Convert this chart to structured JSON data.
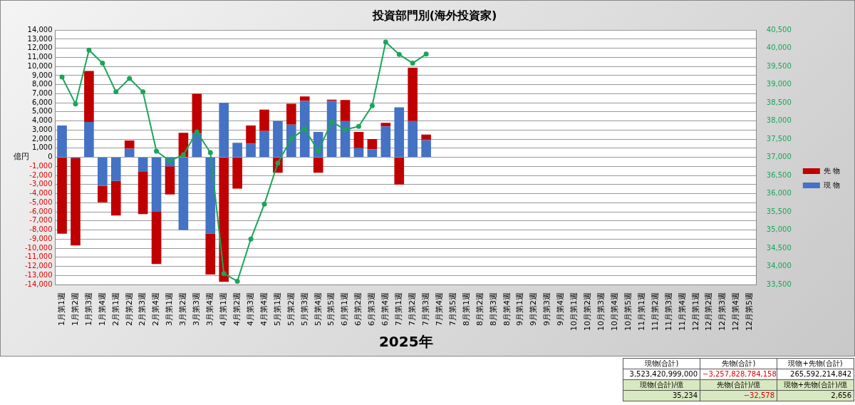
{
  "chart_data": {
    "type": "bar",
    "title": "投資部門別(海外投資家)",
    "xlabel": "2025年",
    "ylabel": "億円",
    "stacked": true,
    "grid": "y",
    "legend": "right",
    "marker": "circle",
    "line_style": "solid",
    "categories": [
      "1月第1週",
      "1月第2週",
      "1月第3週",
      "1月第4週",
      "2月第1週",
      "2月第2週",
      "2月第3週",
      "2月第4週",
      "3月第1週",
      "3月第2週",
      "3月第3週",
      "3月第4週",
      "4月第1週",
      "4月第2週",
      "4月第3週",
      "4月第4週",
      "5月第1週",
      "5月第2週",
      "5月第3週",
      "5月第4週",
      "5月第5週",
      "6月第1週",
      "6月第2週",
      "6月第3週",
      "6月第4週",
      "7月第1週",
      "7月第2週",
      "7月第3週",
      "7月第4週",
      "7月第5週",
      "8月第1週",
      "8月第2週",
      "8月第3週",
      "8月第4週",
      "9月第1週",
      "9月第2週",
      "9月第3週",
      "9月第4週",
      "10月第1週",
      "10月第2週",
      "10月第3週",
      "10月第4週",
      "10月第5週",
      "11月第1週",
      "11月第2週",
      "11月第3週",
      "11月第4週",
      "12月第1週",
      "12月第2週",
      "12月第3週",
      "12月第4週",
      "12月第5週"
    ],
    "series": [
      {
        "name": "現 物",
        "color": "#4472c4",
        "values": [
          3500,
          -100,
          3900,
          -3150,
          -2600,
          950,
          -1600,
          -6000,
          -1000,
          -8000,
          2650,
          -8400,
          6000,
          1600,
          1500,
          2900,
          4000,
          3600,
          6200,
          2800,
          6200,
          4000,
          1000,
          900,
          3400,
          5500,
          4000,
          1900,
          null,
          null,
          null,
          null,
          null,
          null,
          null,
          null,
          null,
          null,
          null,
          null,
          null,
          null,
          null,
          null,
          null,
          null,
          null,
          null,
          null,
          null,
          null,
          null
        ]
      },
      {
        "name": "先 物",
        "color": "#c00000",
        "values": [
          -8400,
          -9600,
          5600,
          -1800,
          -3800,
          900,
          -4650,
          -5750,
          -3100,
          2700,
          4350,
          -4500,
          -13700,
          -3450,
          2000,
          2350,
          -1700,
          2300,
          500,
          -1700,
          150,
          2300,
          1800,
          1100,
          400,
          -3000,
          5850,
          600,
          null,
          null,
          null,
          null,
          null,
          null,
          null,
          null,
          null,
          null,
          null,
          null,
          null,
          null,
          null,
          null,
          null,
          null,
          null,
          null,
          null,
          null,
          null,
          null
        ]
      },
      {
        "type": "line",
        "axis": "y2",
        "color": "#1aa55a",
        "values": [
          39210,
          38470,
          39950,
          39590,
          38800,
          39170,
          38800,
          37170,
          36900,
          37070,
          37700,
          37130,
          33800,
          33590,
          34750,
          35710,
          36840,
          37510,
          37780,
          37170,
          37980,
          37760,
          37850,
          38420,
          40170,
          39830,
          39590,
          39840,
          null,
          null,
          null,
          null,
          null,
          null,
          null,
          null,
          null,
          null,
          null,
          null,
          null,
          null,
          null,
          null,
          null,
          null,
          null,
          null,
          null,
          null,
          null,
          null
        ]
      }
    ],
    "ylim": [
      -14000,
      14000
    ],
    "yticks": [
      {
        "value": -14000,
        "label": "-14,000"
      },
      {
        "value": -13000,
        "label": "-13,000"
      },
      {
        "value": -12000,
        "label": "-12,000"
      },
      {
        "value": -11000,
        "label": "-11,000"
      },
      {
        "value": -10000,
        "label": "-10,000"
      },
      {
        "value": -9000,
        "label": "-9,000"
      },
      {
        "value": -8000,
        "label": "-8,000"
      },
      {
        "value": -7000,
        "label": "-7,000"
      },
      {
        "value": -6000,
        "label": "-6,000"
      },
      {
        "value": -5000,
        "label": "-5,000"
      },
      {
        "value": -4000,
        "label": "-4,000"
      },
      {
        "value": -3000,
        "label": "-3,000"
      },
      {
        "value": -2000,
        "label": "-2,000"
      },
      {
        "value": -1000,
        "label": "-1,000"
      },
      0,
      {
        "value": 1000,
        "label": "1,000"
      },
      {
        "value": 2000,
        "label": "2,000"
      },
      {
        "value": 3000,
        "label": "3,000"
      },
      {
        "value": 4000,
        "label": "4,000"
      },
      {
        "value": 5000,
        "label": "5,000"
      },
      {
        "value": 6000,
        "label": "6,000"
      },
      {
        "value": 7000,
        "label": "7,000"
      },
      {
        "value": 8000,
        "label": "8,000"
      },
      {
        "value": 9000,
        "label": "9,000"
      },
      {
        "value": 10000,
        "label": "10,000"
      },
      {
        "value": 11000,
        "label": "11,000"
      },
      {
        "value": 12000,
        "label": "12,000"
      },
      {
        "value": 13000,
        "label": "13,000"
      },
      {
        "value": 14000,
        "label": "14,000"
      }
    ],
    "y2lim": [
      33500,
      40500
    ],
    "y2ticks": [
      {
        "value": 33500,
        "label": "33,500"
      },
      {
        "value": 34000,
        "label": "34,000"
      },
      {
        "value": 34500,
        "label": "34,500"
      },
      {
        "value": 35000,
        "label": "35,000"
      },
      {
        "value": 35500,
        "label": "35,500"
      },
      {
        "value": 36000,
        "label": "36,000"
      },
      {
        "value": 36500,
        "label": "36,500"
      },
      {
        "value": 37000,
        "label": "37,000"
      },
      {
        "value": 37500,
        "label": "37,500"
      },
      {
        "value": 38000,
        "label": "38,000"
      },
      {
        "value": 38500,
        "label": "38,500"
      },
      {
        "value": 39000,
        "label": "39,000"
      },
      {
        "value": 39500,
        "label": "39,500"
      },
      {
        "value": 40000,
        "label": "40,000"
      },
      {
        "value": 40500,
        "label": "40,500"
      }
    ],
    "annotations": [
      "現物(合計)",
      "先物(合計)",
      "現物+先物(合計)",
      "3,523,420,999,000",
      "−3,257,828,784,158",
      "265,592,214,842",
      "現物(合計)/億",
      "先物(合計)/億",
      "現物+先物(合計)/億",
      "35,234",
      "−32,578",
      "2,656"
    ]
  }
}
